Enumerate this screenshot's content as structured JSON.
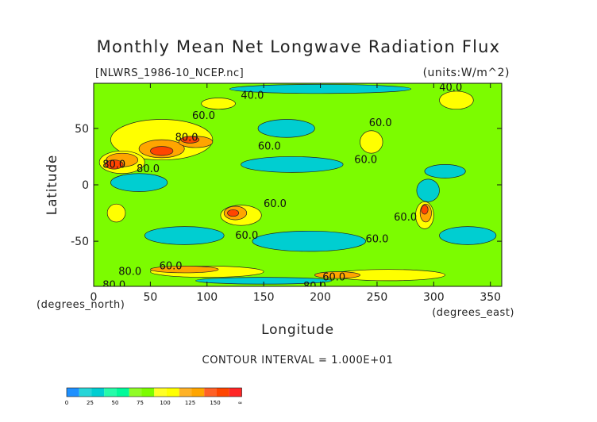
{
  "chart_data": {
    "type": "heatmap",
    "title": "Monthly Mean Net Longwave Radiation Flux",
    "file_label": "[NLWRS_1986-10_NCEP.nc]",
    "units_label": "(units:W/m^2)",
    "xlabel": "Longitude",
    "ylabel": "Latitude",
    "x_unit": "(degrees_east)",
    "y_unit": "(degrees_north)",
    "xlim": [
      0,
      360
    ],
    "ylim": [
      -90,
      90
    ],
    "x_ticks": [
      0,
      50,
      100,
      150,
      200,
      250,
      300,
      350
    ],
    "y_ticks": [
      -50,
      0,
      50
    ],
    "contour_interval_text": "CONTOUR INTERVAL = 1.000E+01",
    "contour_labels": [
      {
        "text": "40.0",
        "lon": 140,
        "lat": 79
      },
      {
        "text": "60.0",
        "lon": 97,
        "lat": 61
      },
      {
        "text": "60.0",
        "lon": 155,
        "lat": 34
      },
      {
        "text": "60.0",
        "lon": 253,
        "lat": 55
      },
      {
        "text": "60.0",
        "lon": 240,
        "lat": 22
      },
      {
        "text": "60.0",
        "lon": 160,
        "lat": -17
      },
      {
        "text": "60.0",
        "lon": 275,
        "lat": -29
      },
      {
        "text": "60.0",
        "lon": 135,
        "lat": -45
      },
      {
        "text": "60.0",
        "lon": 250,
        "lat": -48
      },
      {
        "text": "40.0",
        "lon": 315,
        "lat": 86
      },
      {
        "text": "80.0",
        "lon": 18,
        "lat": 18
      },
      {
        "text": "80.0",
        "lon": 48,
        "lat": 14
      },
      {
        "text": "80.0",
        "lon": 82,
        "lat": 42
      },
      {
        "text": "80.0",
        "lon": 32,
        "lat": -77
      },
      {
        "text": "80.0",
        "lon": 18,
        "lat": -89
      },
      {
        "text": "60.0",
        "lon": 68,
        "lat": -72
      },
      {
        "text": "60.0",
        "lon": 212,
        "lat": -82
      },
      {
        "text": "80.0",
        "lon": 195,
        "lat": -90
      }
    ],
    "colorbar": {
      "levels": [
        "0",
        "25",
        "50",
        "75",
        "100",
        "125",
        "150",
        "∞"
      ],
      "colors": [
        "#1e90ff",
        "#00ced1",
        "#00fa9a",
        "#7cfc00",
        "#ffff00",
        "#ffa500",
        "#ff4500",
        "#ff0000"
      ]
    },
    "regions": [
      {
        "name": "tropical-pacific",
        "bin": 1,
        "lon": 175,
        "lat": 18,
        "rx": 45,
        "ry": 7
      },
      {
        "name": "north-pacific-cyan",
        "bin": 1,
        "lon": 170,
        "lat": 50,
        "rx": 25,
        "ry": 8
      },
      {
        "name": "south-pacific-cyan",
        "bin": 1,
        "lon": 190,
        "lat": -50,
        "rx": 50,
        "ry": 9
      },
      {
        "name": "south-indian-cyan",
        "bin": 1,
        "lon": 80,
        "lat": -45,
        "rx": 35,
        "ry": 8
      },
      {
        "name": "south-atlantic-cyan",
        "bin": 1,
        "lon": 330,
        "lat": -45,
        "rx": 25,
        "ry": 8
      },
      {
        "name": "equatorial-indian-cyan",
        "bin": 1,
        "lon": 40,
        "lat": 2,
        "rx": 25,
        "ry": 8
      },
      {
        "name": "tropical-atlantic-cyan",
        "bin": 1,
        "lon": 310,
        "lat": 12,
        "rx": 18,
        "ry": 6
      },
      {
        "name": "south-america-cyan",
        "bin": 1,
        "lon": 295,
        "lat": -5,
        "rx": 10,
        "ry": 10
      },
      {
        "name": "arctic-cyan",
        "bin": 1,
        "lon": 200,
        "lat": 85,
        "rx": 80,
        "ry": 4
      },
      {
        "name": "antarctic-cyan",
        "bin": 1,
        "lon": 150,
        "lat": -85,
        "rx": 60,
        "ry": 3
      },
      {
        "name": "eurasia-yellow",
        "bin": 4,
        "lon": 60,
        "lat": 40,
        "rx": 45,
        "ry": 18
      },
      {
        "name": "sahara-yellow",
        "bin": 4,
        "lon": 25,
        "lat": 20,
        "rx": 20,
        "ry": 10
      },
      {
        "name": "north-america-yellow",
        "bin": 4,
        "lon": 245,
        "lat": 38,
        "rx": 10,
        "ry": 10
      },
      {
        "name": "australia-yellow",
        "bin": 4,
        "lon": 130,
        "lat": -27,
        "rx": 18,
        "ry": 9
      },
      {
        "name": "south-america-yellow",
        "bin": 4,
        "lon": 292,
        "lat": -27,
        "rx": 8,
        "ry": 12
      },
      {
        "name": "southern-africa-yellow",
        "bin": 4,
        "lon": 20,
        "lat": -25,
        "rx": 8,
        "ry": 8
      },
      {
        "name": "greenland-yellow",
        "bin": 4,
        "lon": 320,
        "lat": 75,
        "rx": 15,
        "ry": 8
      },
      {
        "name": "antarctic-yellow",
        "bin": 4,
        "lon": 100,
        "lat": -77,
        "rx": 50,
        "ry": 5
      },
      {
        "name": "antarctic-yellow-2",
        "bin": 4,
        "lon": 260,
        "lat": -80,
        "rx": 50,
        "ry": 5
      },
      {
        "name": "arctic-yellow",
        "bin": 4,
        "lon": 110,
        "lat": 72,
        "rx": 15,
        "ry": 5
      },
      {
        "name": "sahara-orange",
        "bin": 5,
        "lon": 25,
        "lat": 22,
        "rx": 14,
        "ry": 6
      },
      {
        "name": "central-asia-orange",
        "bin": 5,
        "lon": 60,
        "lat": 32,
        "rx": 20,
        "ry": 8
      },
      {
        "name": "mongolia-orange",
        "bin": 5,
        "lon": 90,
        "lat": 38,
        "rx": 15,
        "ry": 5
      },
      {
        "name": "australia-orange",
        "bin": 5,
        "lon": 125,
        "lat": -25,
        "rx": 10,
        "ry": 6
      },
      {
        "name": "andes-orange",
        "bin": 5,
        "lon": 293,
        "lat": -25,
        "rx": 5,
        "ry": 8
      },
      {
        "name": "antarctic-orange",
        "bin": 5,
        "lon": 80,
        "lat": -75,
        "rx": 30,
        "ry": 3
      },
      {
        "name": "antarctic-orange-2",
        "bin": 5,
        "lon": 215,
        "lat": -80,
        "rx": 20,
        "ry": 3
      },
      {
        "name": "sahara-red",
        "bin": 6,
        "lon": 18,
        "lat": 18,
        "rx": 8,
        "ry": 4
      },
      {
        "name": "iran-red",
        "bin": 6,
        "lon": 60,
        "lat": 30,
        "rx": 10,
        "ry": 4
      },
      {
        "name": "mongolia-red",
        "bin": 6,
        "lon": 85,
        "lat": 40,
        "rx": 8,
        "ry": 3
      },
      {
        "name": "australia-red",
        "bin": 6,
        "lon": 123,
        "lat": -25,
        "rx": 5,
        "ry": 3
      },
      {
        "name": "andes-red",
        "bin": 6,
        "lon": 292,
        "lat": -22,
        "rx": 3,
        "ry": 4
      }
    ]
  }
}
